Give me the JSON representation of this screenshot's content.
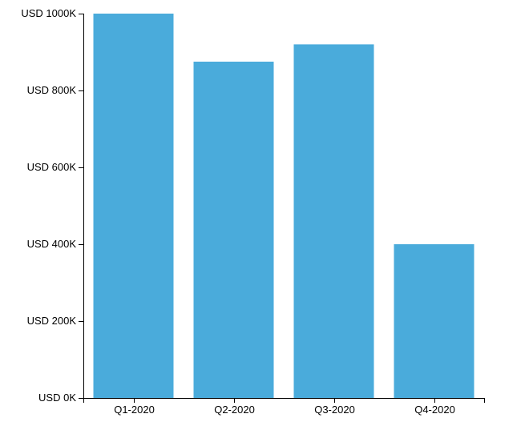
{
  "chart_data": {
    "type": "bar",
    "title": "",
    "xlabel": "",
    "ylabel": "",
    "categories": [
      "Q1-2020",
      "Q2-2020",
      "Q3-2020",
      "Q4-2020"
    ],
    "values": [
      1000000,
      875000,
      920000,
      400000
    ],
    "ylim": [
      0,
      1000000
    ],
    "y_ticks": [
      0,
      200000,
      400000,
      600000,
      800000,
      1000000
    ],
    "y_tick_labels": [
      "USD 0K",
      "USD 200K",
      "USD 400K",
      "USD 600K",
      "USD 800K",
      "USD 1000K"
    ],
    "grid": false,
    "legend": "none",
    "colors": {
      "bar": "#4aabdb"
    }
  }
}
